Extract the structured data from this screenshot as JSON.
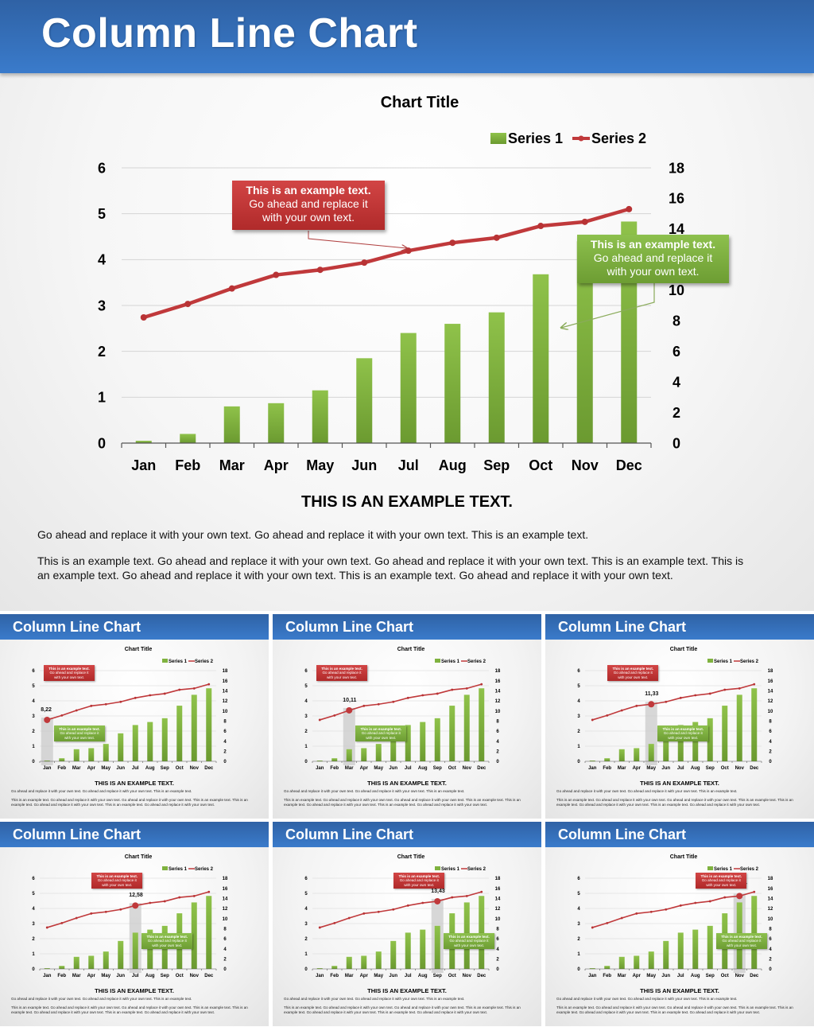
{
  "header": {
    "title": "Column Line Chart"
  },
  "chart_data": {
    "type": "bar",
    "title": "Chart Title",
    "categories": [
      "Jan",
      "Feb",
      "Mar",
      "Apr",
      "May",
      "Jun",
      "Jul",
      "Aug",
      "Sep",
      "Oct",
      "Nov",
      "Dec"
    ],
    "series": [
      {
        "name": "Series 1",
        "type": "bar",
        "axis": "left",
        "color": "#7fb23f",
        "values": [
          0.05,
          0.2,
          0.8,
          0.87,
          1.15,
          1.85,
          2.4,
          2.6,
          2.85,
          3.68,
          4.4,
          4.83
        ]
      },
      {
        "name": "Series 2",
        "type": "line",
        "axis": "right",
        "color": "#c0393b",
        "values": [
          8.22,
          9.1,
          10.11,
          11.0,
          11.33,
          11.8,
          12.58,
          13.1,
          13.43,
          14.2,
          14.47,
          15.3
        ]
      }
    ],
    "left_axis": {
      "ticks": [
        "0",
        "1",
        "2",
        "3",
        "4",
        "5",
        "6"
      ],
      "range": [
        0,
        6
      ]
    },
    "right_axis": {
      "ticks": [
        "0",
        "2",
        "4",
        "6",
        "8",
        "10",
        "12",
        "14",
        "16",
        "18"
      ],
      "range": [
        0,
        18
      ]
    },
    "xlabel": "",
    "ylabel": "",
    "grid": true,
    "legend_position": "top-right",
    "annotations": [
      {
        "color": "red",
        "lines": [
          "This is an example text.",
          "Go ahead and replace it",
          "with your own text."
        ]
      },
      {
        "color": "green",
        "lines": [
          "This is an example text.",
          "Go ahead and replace it",
          "with your own text."
        ]
      }
    ]
  },
  "legend": {
    "series1": "Series 1",
    "series2": "Series 2"
  },
  "callouts": {
    "red": {
      "l1": "This is an example text.",
      "l2": "Go ahead and replace it",
      "l3": "with your own text."
    },
    "green": {
      "l1": "This is an example text.",
      "l2": "Go ahead and replace it",
      "l3": "with your own text."
    }
  },
  "body": {
    "heading": "THIS IS AN EXAMPLE TEXT.",
    "para1": "Go ahead and replace it with your own text. Go ahead and replace it with your own text. This is an example text.",
    "para2": "This is an example text. Go ahead and replace it with your own text. Go ahead and replace it with your own text. This is an example text. This is an example text. Go ahead and replace it with your own text. This is an example text. Go ahead and replace it with your own text."
  },
  "thumbnails": [
    {
      "title": "Column Line Chart",
      "highlight_month": "Jan",
      "highlight_index": 0,
      "value_label": "8,22"
    },
    {
      "title": "Column Line Chart",
      "highlight_month": "Mar",
      "highlight_index": 2,
      "value_label": "10,11"
    },
    {
      "title": "Column Line Chart",
      "highlight_month": "May",
      "highlight_index": 4,
      "value_label": "11,33"
    },
    {
      "title": "Column Line Chart",
      "highlight_month": "Jul",
      "highlight_index": 6,
      "value_label": "12,58"
    },
    {
      "title": "Column Line Chart",
      "highlight_month": "Sep",
      "highlight_index": 8,
      "value_label": "13,43"
    },
    {
      "title": "Column Line Chart",
      "highlight_month": "Nov",
      "highlight_index": 10,
      "value_label": "14,47"
    }
  ]
}
